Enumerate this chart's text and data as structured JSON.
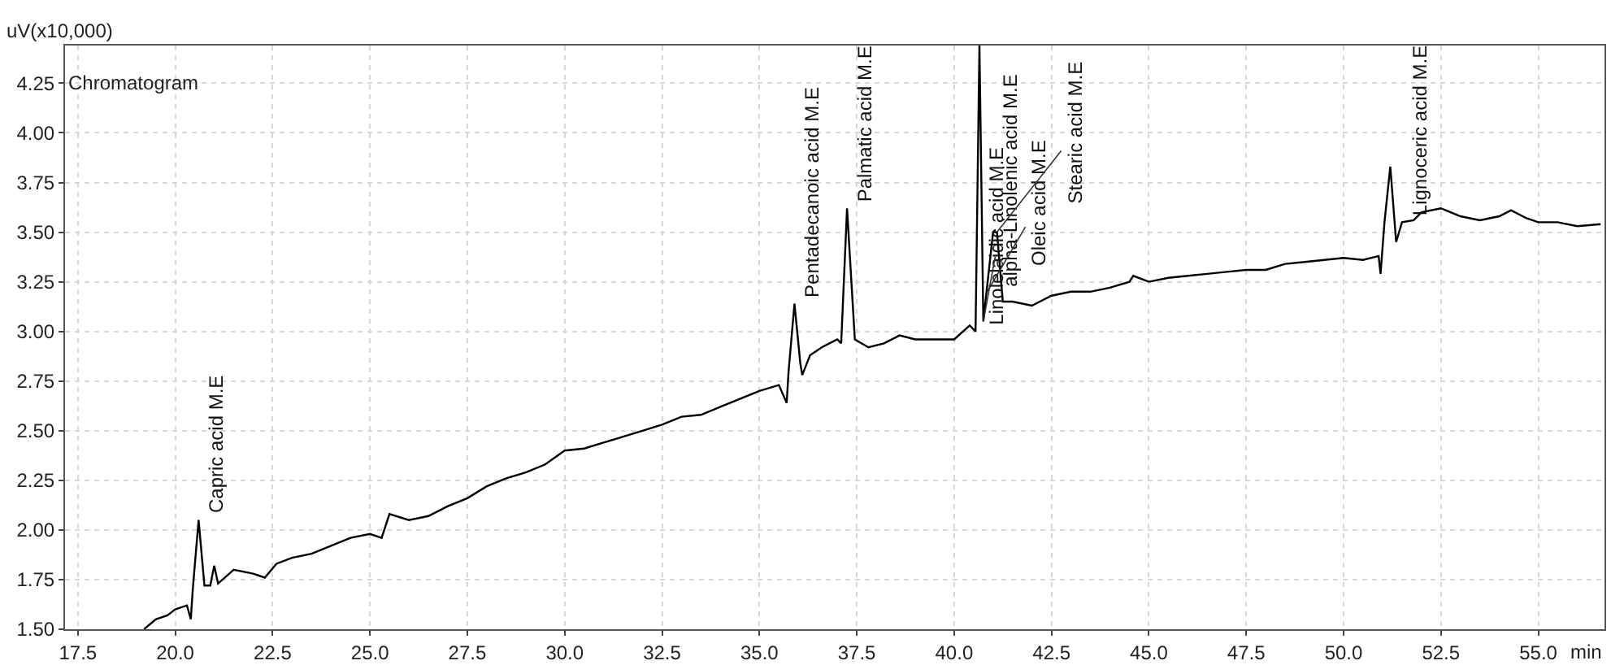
{
  "chart_data": {
    "type": "line",
    "title": "Chromatogram",
    "xlabel": "min",
    "ylabel": "uV(x10,000)",
    "x": [
      19.2,
      19.5,
      19.8,
      20.0,
      20.3,
      20.4,
      20.45,
      20.6,
      20.75,
      20.9,
      21.0,
      21.1,
      21.5,
      22.0,
      22.3,
      22.6,
      23.0,
      23.5,
      24.0,
      24.5,
      25.0,
      25.3,
      25.5,
      26.0,
      26.5,
      27.0,
      27.5,
      28.0,
      28.5,
      29.0,
      29.5,
      30.0,
      30.5,
      31.0,
      31.5,
      32.0,
      32.5,
      33.0,
      33.5,
      34.0,
      34.5,
      35.0,
      35.5,
      35.7,
      35.75,
      35.9,
      36.05,
      36.1,
      36.3,
      36.6,
      37.0,
      37.1,
      37.25,
      37.45,
      37.8,
      38.2,
      38.6,
      39.0,
      39.5,
      40.0,
      40.4,
      40.55,
      40.65,
      40.75,
      41.0,
      41.1,
      41.25,
      41.5,
      42.0,
      42.5,
      43.0,
      43.5,
      44.0,
      44.5,
      44.6,
      45.0,
      45.5,
      46.0,
      46.5,
      47.0,
      47.5,
      48.0,
      48.5,
      49.0,
      49.5,
      50.0,
      50.5,
      50.9,
      50.95,
      51.05,
      51.2,
      51.35,
      51.5,
      51.8,
      52.0,
      52.5,
      53.0,
      53.5,
      54.0,
      54.3,
      54.7,
      55.0,
      55.5,
      56.0,
      56.6
    ],
    "series": [
      {
        "color": "#000000",
        "values": [
          1.5,
          1.55,
          1.57,
          1.6,
          1.62,
          1.55,
          1.7,
          2.05,
          1.72,
          1.72,
          1.82,
          1.73,
          1.8,
          1.78,
          1.76,
          1.83,
          1.86,
          1.88,
          1.92,
          1.96,
          1.98,
          1.96,
          2.08,
          2.05,
          2.07,
          2.12,
          2.16,
          2.22,
          2.26,
          2.29,
          2.33,
          2.4,
          2.41,
          2.44,
          2.47,
          2.5,
          2.53,
          2.57,
          2.58,
          2.62,
          2.66,
          2.7,
          2.73,
          2.64,
          2.8,
          3.14,
          2.84,
          2.78,
          2.88,
          2.92,
          2.96,
          2.94,
          3.62,
          2.96,
          2.92,
          2.94,
          2.98,
          2.96,
          2.96,
          2.96,
          3.03,
          3.0,
          4.44,
          3.05,
          3.5,
          3.5,
          3.15,
          3.15,
          3.13,
          3.18,
          3.2,
          3.2,
          3.22,
          3.25,
          3.28,
          3.25,
          3.27,
          3.28,
          3.29,
          3.3,
          3.31,
          3.31,
          3.34,
          3.35,
          3.36,
          3.37,
          3.36,
          3.38,
          3.29,
          3.55,
          3.83,
          3.45,
          3.55,
          3.56,
          3.6,
          3.62,
          3.58,
          3.56,
          3.58,
          3.61,
          3.57,
          3.55,
          3.55,
          3.53,
          3.54
        ]
      }
    ],
    "xlim": [
      17.17,
      56.7
    ],
    "ylim": [
      1.5,
      4.44
    ],
    "xticks": [
      17.5,
      {
        "value": 20,
        "label": "20.0"
      },
      22.5,
      {
        "value": 25,
        "label": "25.0"
      },
      27.5,
      {
        "value": 30,
        "label": "30.0"
      },
      32.5,
      {
        "value": 35,
        "label": "35.0"
      },
      37.5,
      {
        "value": 40,
        "label": "40.0"
      },
      42.5,
      {
        "value": 45,
        "label": "45.0"
      },
      47.5,
      {
        "value": 50,
        "label": "50.0"
      },
      52.5,
      {
        "value": 55,
        "label": "55.0"
      }
    ],
    "yticks": [
      {
        "value": 1.5,
        "label": "1.50"
      },
      1.75,
      {
        "value": 2,
        "label": "2.00"
      },
      2.25,
      {
        "value": 2.5,
        "label": "2.50"
      },
      2.75,
      {
        "value": 3,
        "label": "3.00"
      },
      3.25,
      {
        "value": 3.5,
        "label": "3.50"
      },
      3.75,
      {
        "value": 4,
        "label": "4.00"
      },
      4.25
    ],
    "grid": true,
    "annotations": [
      {
        "text": "Capric acid M.E",
        "x": 20.6,
        "y": 2.05
      },
      {
        "text": "Pentadecanoic acid M.E",
        "x": 35.9,
        "y": 3.14
      },
      {
        "text": "Palmatic acid M.E",
        "x": 37.25,
        "y": 3.62
      },
      {
        "text": "Linolelaidic acid M.E",
        "x": 40.65,
        "y": 3.0
      },
      {
        "text": "alpha-Linolenic acid M.E",
        "x": 40.75,
        "y": 3.05
      },
      {
        "text": "Oleic acid M.E",
        "x": 40.85,
        "y": 3.2
      },
      {
        "text": "Stearic acid M.E",
        "x": 41.1,
        "y": 3.5
      },
      {
        "text": "Lignoceric acid M.E",
        "x": 51.5,
        "y": 3.55
      }
    ]
  }
}
